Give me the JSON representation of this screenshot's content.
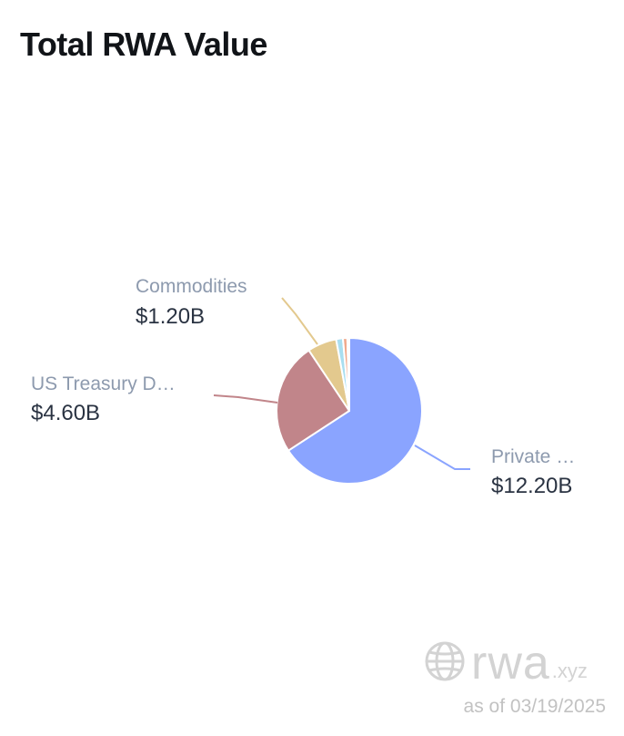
{
  "header": {
    "title": "Total RWA Value"
  },
  "chart_data": {
    "type": "pie",
    "title": "Total RWA Value",
    "slices": [
      {
        "label": "Private …",
        "value": 12.2,
        "value_label": "$12.20B",
        "color": "#8aa4ff",
        "labeled": true
      },
      {
        "label": "US Treasury D…",
        "value": 4.6,
        "value_label": "$4.60B",
        "color": "#c1858a",
        "labeled": true
      },
      {
        "label": "Commodities",
        "value": 1.2,
        "value_label": "$1.20B",
        "color": "#e3c98e",
        "labeled": true
      },
      {
        "label": "",
        "value": 0.28,
        "value_label": "",
        "color": "#a9def0",
        "labeled": false
      },
      {
        "label": "",
        "value": 0.18,
        "value_label": "",
        "color": "#f0a98c",
        "labeled": false
      },
      {
        "label": "",
        "value": 0.08,
        "value_label": "",
        "color": "#d8c9f2",
        "labeled": false
      }
    ],
    "legend": "none"
  },
  "footer": {
    "brand": "rwa",
    "brand_suffix": ".xyz",
    "asof_prefix": "as of",
    "date": "03/19/2025",
    "icon": "globe-icon"
  }
}
